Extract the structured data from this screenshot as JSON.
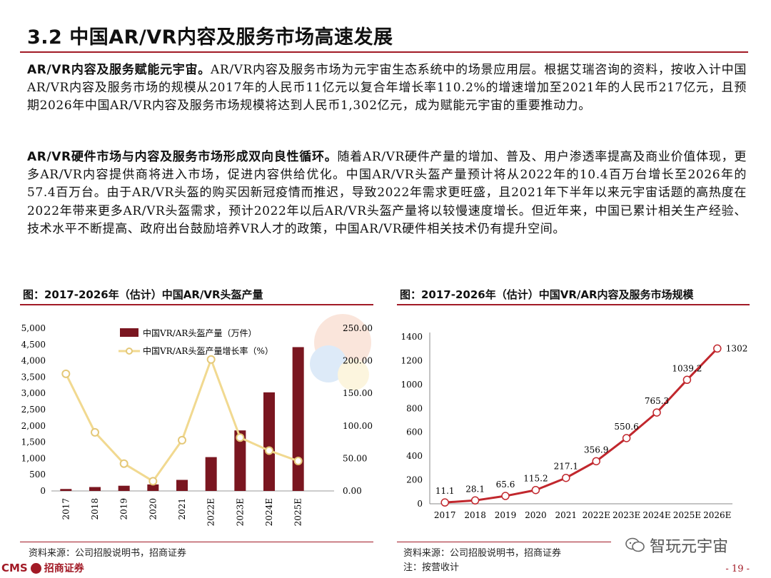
{
  "title": "3.2 中国AR/VR内容及服务市场高速发展",
  "paragraph1": {
    "bold": "AR/VR内容及服务赋能元宇宙。",
    "text": "AR/VR内容及服务市场为元宇宙生态系统中的场景应用层。根据艾瑞咨询的资料，按收入计中国AR/VR内容及服务市场的规模从2017年的人民币11亿元以复合年增长率110.2%的增速增加至2021年的人民币217亿元，且预期2026年中国AR/VR内容及服务市场规模将达到人民币1,302亿元，成为赋能元宇宙的重要推动力。"
  },
  "paragraph2": {
    "bold": "AR/VR硬件市场与内容及服务市场形成双向良性循环。",
    "text": "随着AR/VR硬件产量的增加、普及、用户渗透率提高及商业价值体现，更多AR/VR内容提供商将进入市场，促进内容供给优化。中国AR/VR头盔产量预计将从2022年的10.4百万台增长至2026年的57.4百万台。由于AR/VR头盔的购买因新冠疫情而推迟，导致2022年需求更旺盛，且2021年下半年以来元宇宙话题的高热度在2022年带来更多AR/VR头盔需求，预计2022年以后AR/VR头盔产量将以较慢速度增长。但近年来，中国已累计相关生产经验、技术水平不断提高、政府出台鼓励培养VR人才的政策，中国AR/VR硬件相关技术仍有提升空间。"
  },
  "fig_left": {
    "title": "图：2017-2026年（估计）中国AR/VR头盔产量",
    "source": "资料来源：公司招股说明书，招商证券"
  },
  "fig_right": {
    "title": "图：2017-2026年（估计）中国VR/AR内容及服务市场规模",
    "source": "资料来源：公司招股说明书，招商证券",
    "note": "注：按营收计"
  },
  "chart_data": [
    {
      "type": "bar+line",
      "title": "2017-2026年（估计）中国AR/VR头盔产量",
      "categories": [
        "2017",
        "2018",
        "2019",
        "2020",
        "2021",
        "2022E",
        "2023E",
        "2024E",
        "2025E"
      ],
      "series": [
        {
          "name": "中国VR/AR头盔产量（万件）",
          "type": "bar",
          "axis": "left",
          "values": [
            60,
            120,
            160,
            200,
            340,
            1040,
            1860,
            3030,
            4420
          ]
        },
        {
          "name": "中国VR/AR头盔产量增长率（%）",
          "type": "line",
          "axis": "right",
          "values": [
            180,
            90,
            42,
            15,
            78,
            202,
            82,
            62,
            46
          ]
        }
      ],
      "y_left": {
        "min": 0,
        "max": 5000,
        "ticks": [
          "0",
          "500",
          "1,000",
          "1,500",
          "2,000",
          "2,500",
          "3,000",
          "3,500",
          "4,000",
          "4,500",
          "5,000"
        ]
      },
      "y_right": {
        "min": 0,
        "max": 250,
        "ticks": [
          "0.00",
          "50.00",
          "100.00",
          "150.00",
          "200.00",
          "250.00"
        ]
      },
      "legend_position": "top-center",
      "colors": {
        "bar": "#7a1620",
        "line": "#f1d990",
        "line_marker": "#e4c878"
      }
    },
    {
      "type": "line",
      "title": "2017-2026年（估计）中国VR/AR内容及服务市场规模",
      "categories": [
        "2017",
        "2018",
        "2019",
        "2020",
        "2021",
        "2022E",
        "2023E",
        "2024E",
        "2025E",
        "2026E"
      ],
      "values": [
        11.1,
        28.1,
        65.6,
        115.2,
        217.1,
        356.9,
        550.6,
        765.3,
        1039.2,
        1302
      ],
      "labels": [
        "11.1",
        "28.1",
        "65.6",
        "115.2",
        "217.1",
        "356.9",
        "550.6",
        "765.3",
        "1039.2",
        "1302"
      ],
      "y": {
        "min": 0,
        "max": 1400,
        "ticks": [
          "0",
          "200",
          "400",
          "600",
          "800",
          "1000",
          "1200",
          "1400"
        ]
      },
      "colors": {
        "line": "#c1272d",
        "marker_fill": "#ffffff"
      }
    }
  ],
  "footer": {
    "logo_text": "CMS",
    "company": "招商证券",
    "page": "- 19 -",
    "wechat": "智玩元宇宙"
  }
}
